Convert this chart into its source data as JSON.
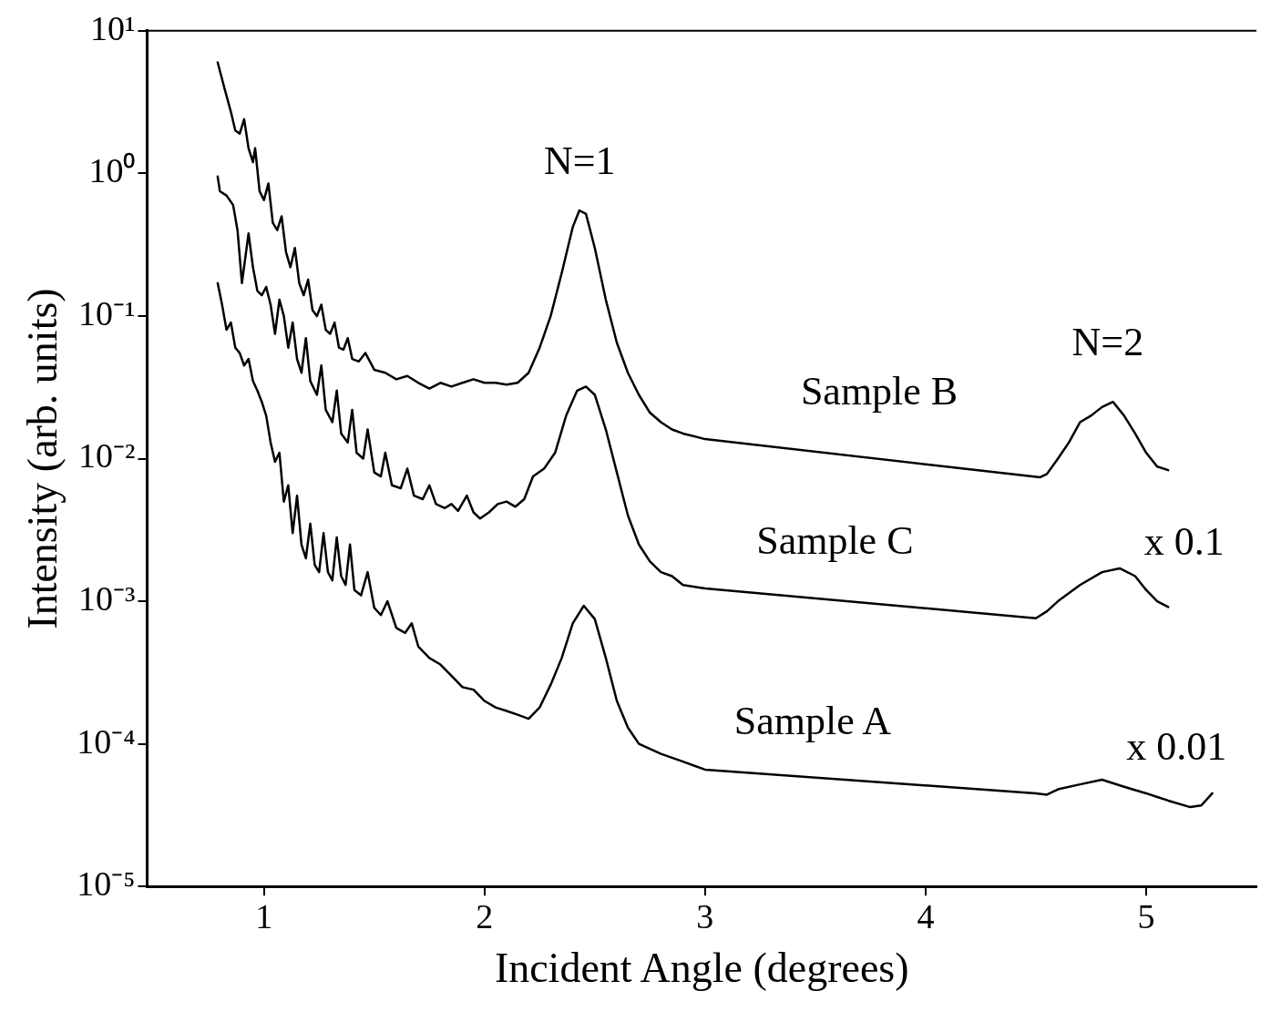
{
  "chart_data": {
    "type": "line",
    "xlabel": "Incident Angle (degrees)",
    "ylabel": "Intensity (arb. units)",
    "log": "y",
    "grid": false,
    "legend": false,
    "marker": "none",
    "line_style": "solid",
    "xlim": [
      0.47,
      5.5
    ],
    "xticks": [
      1,
      2,
      3,
      4,
      5
    ],
    "ylim": [
      1e-05,
      10
    ],
    "yticks": [
      {
        "value": 1e-05,
        "label": "10⁻⁵"
      },
      {
        "value": 0.0001,
        "label": "10⁻⁴"
      },
      {
        "value": 0.001,
        "label": "10⁻³"
      },
      {
        "value": 0.01,
        "label": "10⁻²"
      },
      {
        "value": 0.1,
        "label": "10⁻¹"
      },
      {
        "value": 1,
        "label": "10⁰"
      },
      {
        "value": 10,
        "label": "10¹"
      }
    ],
    "annotations": [
      "N=1",
      "N=2",
      "x 0.1",
      "x 0.01"
    ],
    "series": [
      {
        "name": "Sample B",
        "color": "#000000",
        "x": [
          0.79,
          0.82,
          0.85,
          0.87,
          0.89,
          0.91,
          0.93,
          0.95,
          0.96,
          0.98,
          1.0,
          1.02,
          1.04,
          1.06,
          1.08,
          1.1,
          1.12,
          1.14,
          1.16,
          1.18,
          1.2,
          1.22,
          1.24,
          1.26,
          1.28,
          1.3,
          1.32,
          1.34,
          1.36,
          1.38,
          1.4,
          1.43,
          1.46,
          1.5,
          1.55,
          1.6,
          1.65,
          1.7,
          1.75,
          1.8,
          1.85,
          1.9,
          1.95,
          2.0,
          2.05,
          2.1,
          2.15,
          2.2,
          2.25,
          2.3,
          2.35,
          2.4,
          2.43,
          2.46,
          2.5,
          2.55,
          2.6,
          2.65,
          2.7,
          2.75,
          2.8,
          2.85,
          2.9,
          3.0,
          4.52,
          4.55,
          4.6,
          4.65,
          4.7,
          4.75,
          4.8,
          4.85,
          4.9,
          4.95,
          5.0,
          5.05,
          5.1
        ],
        "values": [
          6.0,
          4.0,
          2.7,
          2.0,
          1.9,
          2.4,
          1.5,
          1.2,
          1.5,
          0.75,
          0.65,
          0.85,
          0.45,
          0.4,
          0.5,
          0.28,
          0.22,
          0.3,
          0.17,
          0.14,
          0.18,
          0.11,
          0.1,
          0.12,
          0.08,
          0.075,
          0.09,
          0.06,
          0.058,
          0.07,
          0.05,
          0.048,
          0.055,
          0.042,
          0.04,
          0.036,
          0.038,
          0.034,
          0.031,
          0.034,
          0.032,
          0.034,
          0.036,
          0.034,
          0.034,
          0.033,
          0.034,
          0.04,
          0.06,
          0.1,
          0.2,
          0.42,
          0.55,
          0.52,
          0.3,
          0.13,
          0.065,
          0.04,
          0.028,
          0.021,
          0.018,
          0.016,
          0.015,
          0.0137,
          0.0074,
          0.0078,
          0.01,
          0.013,
          0.018,
          0.02,
          0.023,
          0.025,
          0.02,
          0.015,
          0.011,
          0.0088,
          0.0083
        ]
      },
      {
        "name": "Sample C",
        "color": "#000000",
        "x": [
          0.79,
          0.8,
          0.83,
          0.86,
          0.88,
          0.9,
          0.93,
          0.95,
          0.97,
          0.99,
          1.01,
          1.03,
          1.05,
          1.07,
          1.09,
          1.11,
          1.13,
          1.15,
          1.17,
          1.19,
          1.21,
          1.24,
          1.26,
          1.28,
          1.31,
          1.33,
          1.35,
          1.38,
          1.4,
          1.42,
          1.45,
          1.47,
          1.5,
          1.53,
          1.55,
          1.58,
          1.62,
          1.65,
          1.68,
          1.72,
          1.75,
          1.78,
          1.82,
          1.85,
          1.88,
          1.92,
          1.95,
          1.98,
          2.02,
          2.06,
          2.1,
          2.14,
          2.18,
          2.22,
          2.27,
          2.32,
          2.37,
          2.42,
          2.46,
          2.5,
          2.55,
          2.6,
          2.65,
          2.7,
          2.75,
          2.8,
          2.85,
          2.9,
          3.0,
          4.5,
          4.55,
          4.6,
          4.7,
          4.8,
          4.88,
          4.95,
          5.0,
          5.05,
          5.1
        ],
        "values": [
          0.95,
          0.75,
          0.7,
          0.6,
          0.4,
          0.17,
          0.38,
          0.22,
          0.15,
          0.14,
          0.16,
          0.12,
          0.075,
          0.13,
          0.1,
          0.06,
          0.09,
          0.05,
          0.04,
          0.07,
          0.035,
          0.028,
          0.045,
          0.022,
          0.018,
          0.03,
          0.015,
          0.013,
          0.022,
          0.011,
          0.01,
          0.016,
          0.008,
          0.0075,
          0.011,
          0.0065,
          0.0062,
          0.0085,
          0.0055,
          0.0052,
          0.0065,
          0.0048,
          0.0045,
          0.0048,
          0.0043,
          0.0055,
          0.0042,
          0.0038,
          0.0042,
          0.0048,
          0.005,
          0.0046,
          0.0052,
          0.0075,
          0.0085,
          0.011,
          0.02,
          0.03,
          0.032,
          0.028,
          0.016,
          0.008,
          0.004,
          0.0025,
          0.0019,
          0.0016,
          0.0015,
          0.0013,
          0.00123,
          0.00076,
          0.00085,
          0.001,
          0.0013,
          0.0016,
          0.0017,
          0.0015,
          0.0012,
          0.001,
          0.00091
        ]
      },
      {
        "name": "Sample A",
        "color": "#000000",
        "x": [
          0.79,
          0.81,
          0.83,
          0.85,
          0.87,
          0.89,
          0.91,
          0.93,
          0.95,
          0.97,
          0.99,
          1.01,
          1.03,
          1.05,
          1.07,
          1.09,
          1.11,
          1.13,
          1.15,
          1.17,
          1.19,
          1.21,
          1.23,
          1.25,
          1.27,
          1.29,
          1.31,
          1.33,
          1.35,
          1.37,
          1.39,
          1.41,
          1.44,
          1.47,
          1.5,
          1.53,
          1.56,
          1.6,
          1.64,
          1.67,
          1.7,
          1.75,
          1.8,
          1.85,
          1.9,
          1.95,
          2.0,
          2.05,
          2.1,
          2.15,
          2.2,
          2.25,
          2.3,
          2.35,
          2.4,
          2.45,
          2.5,
          2.55,
          2.6,
          2.65,
          2.7,
          2.8,
          2.9,
          3.0,
          4.5,
          4.55,
          4.6,
          4.7,
          4.8,
          4.9,
          5.0,
          5.1,
          5.2,
          5.25,
          5.3
        ],
        "values": [
          0.17,
          0.12,
          0.08,
          0.09,
          0.06,
          0.055,
          0.045,
          0.05,
          0.035,
          0.03,
          0.025,
          0.02,
          0.013,
          0.0095,
          0.011,
          0.005,
          0.0065,
          0.003,
          0.0055,
          0.0025,
          0.002,
          0.0035,
          0.0018,
          0.0016,
          0.003,
          0.0016,
          0.0014,
          0.0028,
          0.0015,
          0.0013,
          0.0025,
          0.0012,
          0.0011,
          0.0016,
          0.0009,
          0.0008,
          0.001,
          0.00065,
          0.0006,
          0.0007,
          0.00048,
          0.0004,
          0.00036,
          0.0003,
          0.00025,
          0.00024,
          0.0002,
          0.00018,
          0.00017,
          0.00016,
          0.00015,
          0.00018,
          0.00026,
          0.0004,
          0.0007,
          0.00093,
          0.00075,
          0.0004,
          0.0002,
          0.00013,
          0.0001,
          8.5e-05,
          7.5e-05,
          6.6e-05,
          4.5e-05,
          4.4e-05,
          4.8e-05,
          5.2e-05,
          5.6e-05,
          5e-05,
          4.5e-05,
          4e-05,
          3.6e-05,
          3.7e-05,
          4.5e-05
        ]
      }
    ]
  }
}
